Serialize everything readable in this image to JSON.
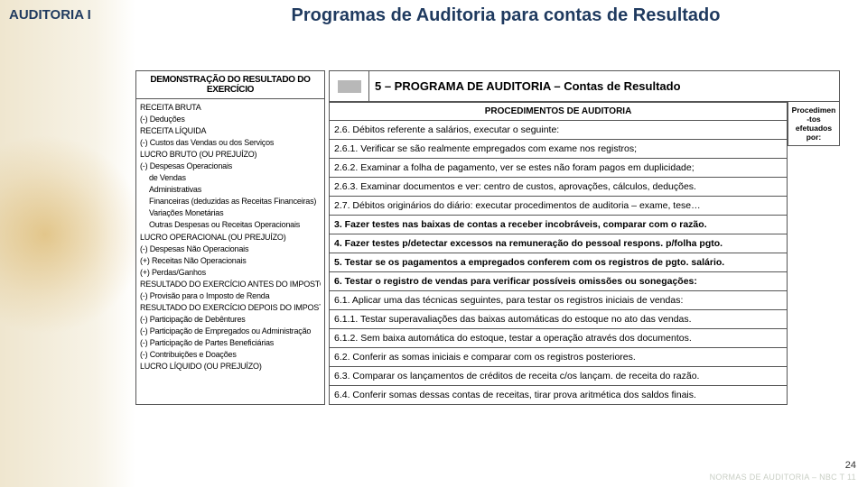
{
  "header": {
    "course_label": "AUDITORIA I",
    "main_title": "Programas de Auditoria para contas de Resultado"
  },
  "dre": {
    "title": "DEMONSTRAÇÃO DO RESULTADO DO EXERCÍCIO",
    "lines": [
      "RECEITA BRUTA",
      "(-) Deduções",
      "RECEITA LÍQUIDA",
      "(-) Custos das Vendas ou dos Serviços",
      "LUCRO BRUTO (OU PREJUÍZO)",
      "(-) Despesas Operacionais",
      "de Vendas",
      "Administrativas",
      "Financeiras (deduzidas as Receitas Financeiras)",
      "Variações Monetárias",
      "Outras Despesas ou Receitas Operacionais",
      "LUCRO OPERACIONAL (OU PREJUÍZO)",
      "(-) Despesas Não Operacionais",
      "(+) Receitas Não Operacionais",
      "(+) Perdas/Ganhos",
      "RESULTADO DO EXERCÍCIO ANTES DO IMPOSTO DE RENDA",
      "(-) Provisão para o Imposto de Renda",
      "RESULTADO DO EXERCÍCIO DEPOIS DO IMPOSTO DE RENDA",
      "(-) Participação de Debêntures",
      "(-) Participação de Empregados ou Administração",
      "(-) Participação de Partes Beneficiárias",
      "(-) Contribuições e Doações",
      "LUCRO LÍQUIDO (OU PREJUÍZO)"
    ],
    "indent_indices": [
      6,
      7,
      8,
      9,
      10
    ]
  },
  "procedures": {
    "section_title": "5 – PROGRAMA DE AUDITORIA – Contas de Resultado",
    "table_header": "PROCEDIMENTOS DE AUDITORIA",
    "side_header": "Procedimen\n-tos\nefetuados\npor:",
    "rows": [
      {
        "text": "2.6. Débitos referente a salários, executar o seguinte:",
        "bold": false
      },
      {
        "text": "2.6.1. Verificar se são realmente empregados com exame nos registros;",
        "bold": false
      },
      {
        "text": "2.6.2. Examinar a folha de pagamento, ver se estes não foram pagos em duplicidade;",
        "bold": false
      },
      {
        "text": "2.6.3. Examinar documentos e ver: centro de custos, aprovações, cálculos, deduções.",
        "bold": false
      },
      {
        "text": "2.7. Débitos originários do diário: executar procedimentos de auditoria – exame, tese…",
        "bold": false
      },
      {
        "text": "3. Fazer testes nas baixas de contas a receber incobráveis, comparar com o razão.",
        "bold": true
      },
      {
        "text": "4. Fazer testes p/detectar excessos na remuneração do pessoal respons. p/folha pgto.",
        "bold": true
      },
      {
        "text": "5. Testar se os pagamentos a empregados conferem com os registros de pgto. salário.",
        "bold": true
      },
      {
        "text": "6. Testar o registro de vendas para verificar possíveis omissões ou sonegações:",
        "bold": true
      },
      {
        "text": "6.1. Aplicar uma das técnicas seguintes, para testar os registros iniciais de vendas:",
        "bold": false
      },
      {
        "text": "6.1.1. Testar superavaliações das baixas automáticas do estoque no ato das vendas.",
        "bold": false
      },
      {
        "text": "6.1.2. Sem baixa automática do estoque, testar a operação através dos documentos.",
        "bold": false
      },
      {
        "text": "6.2. Conferir as somas iniciais e comparar com os registros posteriores.",
        "bold": false
      },
      {
        "text": "6.3. Comparar os lançamentos de créditos de receita c/os lançam. de receita do razão.",
        "bold": false
      },
      {
        "text": "6.4. Conferir somas dessas contas de receitas, tirar prova aritmética dos saldos finais.",
        "bold": false
      }
    ]
  },
  "footer": {
    "page_number": "24",
    "faint_text": "NORMAS DE AUDITORIA – NBC T 11"
  },
  "colors": {
    "title_color": "#1f3a5f",
    "border_color": "#555555",
    "background": "#ffffff",
    "faint_text": "#c9cfc5"
  }
}
